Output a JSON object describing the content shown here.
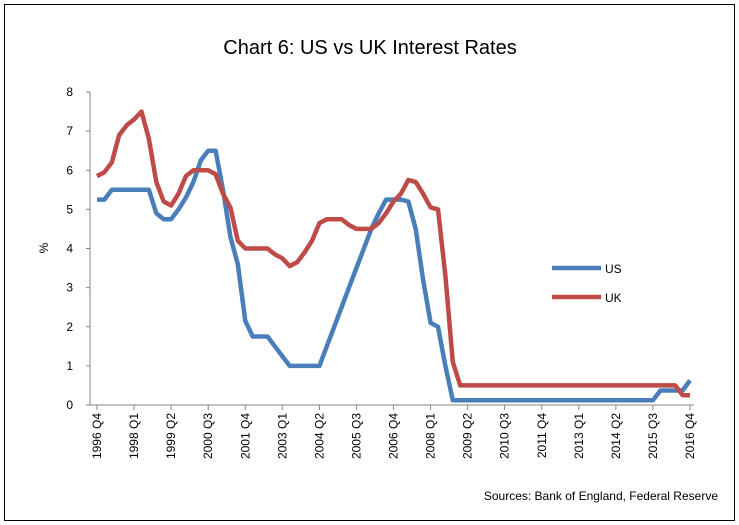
{
  "chart_data": {
    "type": "line",
    "title": "Chart 6: US vs UK Interest Rates",
    "y_label": "%",
    "source": "Sources: Bank of England, Federal Reserve",
    "categories": [
      "1996 Q4",
      null,
      null,
      null,
      null,
      "1998 Q1",
      null,
      null,
      null,
      null,
      "1999 Q2",
      null,
      null,
      null,
      null,
      "2000 Q3",
      null,
      null,
      null,
      null,
      "2001 Q4",
      null,
      null,
      null,
      null,
      "2003 Q1",
      null,
      null,
      null,
      null,
      "2004 Q2",
      null,
      null,
      null,
      null,
      "2005 Q3",
      null,
      null,
      null,
      null,
      "2006 Q4",
      null,
      null,
      null,
      null,
      "2008 Q1",
      null,
      null,
      null,
      null,
      "2009 Q2",
      null,
      null,
      null,
      null,
      "2010 Q3",
      null,
      null,
      null,
      null,
      "2011 Q4",
      null,
      null,
      null,
      null,
      "2013 Q1",
      null,
      null,
      null,
      null,
      "2014 Q2",
      null,
      null,
      null,
      null,
      "2015 Q3",
      null,
      null,
      null,
      null,
      "2016 Q4"
    ],
    "series": [
      {
        "name": "US",
        "color": "#4a7ebb",
        "values": [
          5.25,
          5.25,
          5.5,
          5.5,
          5.5,
          5.5,
          5.5,
          5.5,
          4.9,
          4.75,
          4.75,
          5.0,
          5.3,
          5.7,
          6.25,
          6.5,
          6.5,
          5.5,
          4.3,
          3.6,
          2.15,
          1.75,
          1.75,
          1.75,
          1.5,
          1.25,
          1.0,
          1.0,
          1.0,
          1.0,
          1.0,
          1.5,
          2.0,
          2.5,
          3.0,
          3.5,
          4.0,
          4.5,
          4.9,
          5.25,
          5.25,
          5.25,
          5.2,
          4.5,
          3.2,
          2.1,
          2.0,
          1.0,
          0.12,
          0.12,
          0.12,
          0.12,
          0.12,
          0.12,
          0.12,
          0.12,
          0.12,
          0.12,
          0.12,
          0.12,
          0.12,
          0.12,
          0.12,
          0.12,
          0.12,
          0.12,
          0.12,
          0.12,
          0.12,
          0.12,
          0.12,
          0.12,
          0.12,
          0.12,
          0.12,
          0.12,
          0.37,
          0.37,
          0.37,
          0.37,
          0.63
        ]
      },
      {
        "name": "UK",
        "color": "#be4b48",
        "values": [
          5.85,
          5.95,
          6.2,
          6.9,
          7.15,
          7.3,
          7.5,
          6.8,
          5.7,
          5.2,
          5.1,
          5.4,
          5.85,
          6.0,
          6.0,
          6.0,
          5.9,
          5.4,
          5.05,
          4.2,
          4.0,
          4.0,
          4.0,
          4.0,
          3.85,
          3.75,
          3.55,
          3.65,
          3.9,
          4.2,
          4.65,
          4.75,
          4.75,
          4.75,
          4.6,
          4.5,
          4.5,
          4.5,
          4.65,
          4.9,
          5.2,
          5.4,
          5.75,
          5.7,
          5.4,
          5.05,
          5.0,
          3.3,
          1.1,
          0.5,
          0.5,
          0.5,
          0.5,
          0.5,
          0.5,
          0.5,
          0.5,
          0.5,
          0.5,
          0.5,
          0.5,
          0.5,
          0.5,
          0.5,
          0.5,
          0.5,
          0.5,
          0.5,
          0.5,
          0.5,
          0.5,
          0.5,
          0.5,
          0.5,
          0.5,
          0.5,
          0.5,
          0.5,
          0.5,
          0.25,
          0.25
        ]
      }
    ],
    "ylim": [
      0,
      8
    ],
    "yticks": [
      0,
      1,
      2,
      3,
      4,
      5,
      6,
      7,
      8
    ],
    "grid": false,
    "legend": "right"
  }
}
